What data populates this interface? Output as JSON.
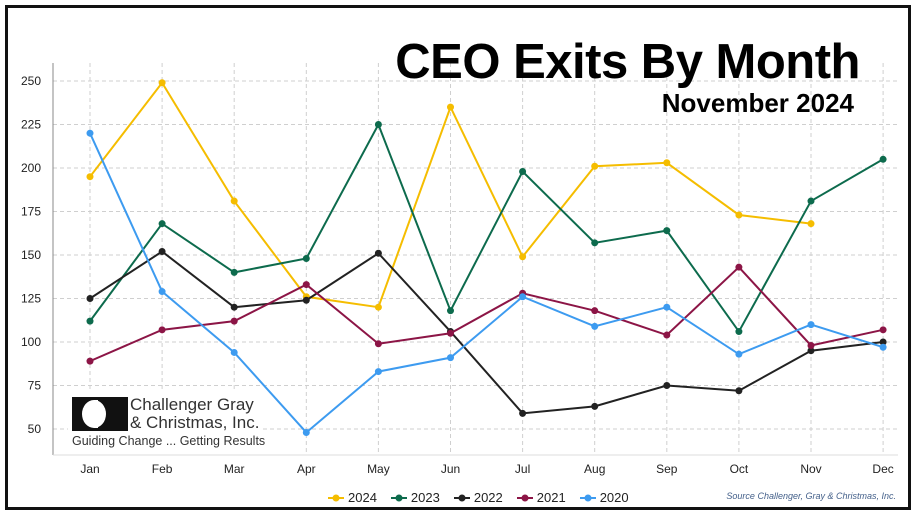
{
  "chart_data": {
    "type": "line",
    "title": "CEO Exits By Month",
    "subtitle": "November 2024",
    "categories": [
      "Jan",
      "Feb",
      "Mar",
      "Apr",
      "May",
      "Jun",
      "Jul",
      "Aug",
      "Sep",
      "Oct",
      "Nov",
      "Dec"
    ],
    "yticks": [
      50,
      75,
      100,
      125,
      150,
      175,
      200,
      225,
      250
    ],
    "ylim": [
      40,
      262
    ],
    "grid": true,
    "legend_position": "bottom",
    "series": [
      {
        "name": "2024",
        "color": "#f5bd00",
        "values": [
          195,
          249,
          181,
          126,
          120,
          235,
          149,
          201,
          203,
          173,
          168,
          null
        ]
      },
      {
        "name": "2023",
        "color": "#0d6b4d",
        "values": [
          112,
          168,
          140,
          148,
          225,
          118,
          198,
          157,
          164,
          106,
          181,
          205
        ]
      },
      {
        "name": "2022",
        "color": "#222222",
        "values": [
          125,
          152,
          120,
          124,
          151,
          106,
          59,
          63,
          75,
          72,
          95,
          100
        ]
      },
      {
        "name": "2021",
        "color": "#8c1546",
        "values": [
          89,
          107,
          112,
          133,
          99,
          105,
          128,
          118,
          104,
          143,
          98,
          107
        ]
      },
      {
        "name": "2020",
        "color": "#3d9bf0",
        "values": [
          220,
          129,
          94,
          48,
          83,
          91,
          126,
          109,
          120,
          93,
          110,
          97
        ]
      }
    ],
    "source": "Source Challenger, Gray & Christmas, Inc."
  },
  "logo": {
    "line1": "Challenger Gray",
    "line2": "& Christmas, Inc.",
    "tagline": "Guiding Change ... Getting Results"
  }
}
